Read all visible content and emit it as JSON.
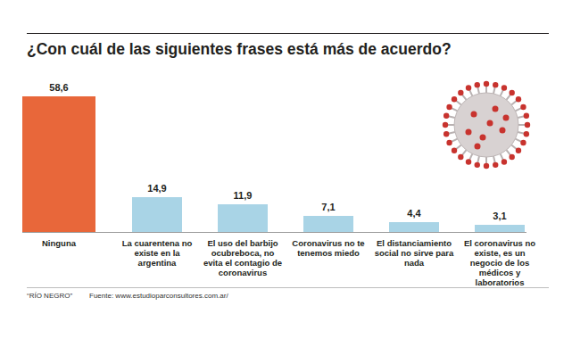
{
  "chart_data": {
    "type": "bar",
    "title": "¿Con cuál de las siguientes frases está más de acuerdo?",
    "categories": [
      "Ninguna",
      "La cuarentena no existe en la argentina",
      "El uso del barbijo ocubreboca, no evita el contagio de coronavirus",
      "Coronavirus no te tenemos miedo",
      "El distanciamiento social no sirve para nada",
      "El coronavirus no existe, es un negocio de los médicos y laboratorios"
    ],
    "values": [
      58.6,
      14.9,
      11.9,
      7.1,
      4.4,
      3.1
    ],
    "value_labels": [
      "58,6",
      "14,9",
      "11,9",
      "7,1",
      "4,4",
      "3,1"
    ],
    "colors": [
      "#e8673a",
      "#a9d4e6",
      "#a9d4e6",
      "#a9d4e6",
      "#a9d4e6",
      "#a9d4e6"
    ],
    "ylim": [
      0,
      60
    ],
    "data_labels": true,
    "tick_labels": "x",
    "note": "“RÍO NEGRO”",
    "source": "Fuente: www.estudioparconsultores.com.ar/"
  }
}
